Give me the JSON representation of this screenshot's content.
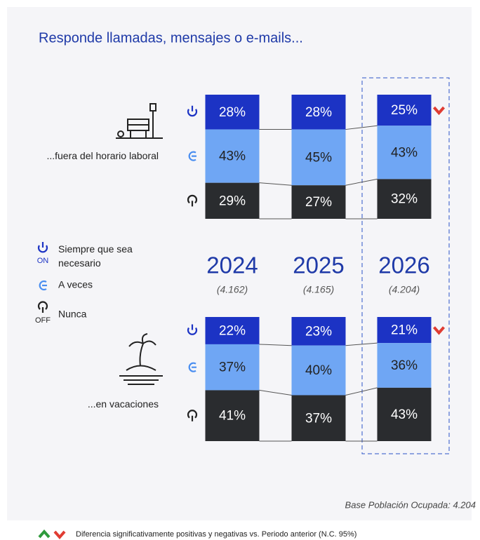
{
  "title": "Responde llamadas, mensajes o e-mails...",
  "base_note": "Base Población Ocupada: 4.204",
  "footnote": "Diferencia significativamente positivas y negativas vs. Periodo anterior (N.C. 95%)",
  "chart_data": [
    {
      "type": "bar",
      "stacked": true,
      "title": "...fuera del horario laboral",
      "categories": [
        "2024",
        "2025",
        "2026"
      ],
      "category_notes": [
        "(4.162)",
        "(4.165)",
        "(4.204)"
      ],
      "series": [
        {
          "name": "Siempre que sea necesario",
          "icon_label": "ON",
          "color": "#1c33c4",
          "values": [
            28,
            28,
            25
          ],
          "value_labels": [
            "28%",
            "28%",
            "25%"
          ],
          "significance": [
            null,
            null,
            "down"
          ]
        },
        {
          "name": "A veces",
          "color": "#6fa6f4",
          "values": [
            43,
            45,
            43
          ],
          "value_labels": [
            "43%",
            "45%",
            "43%"
          ]
        },
        {
          "name": "Nunca",
          "icon_label": "OFF",
          "color": "#2a2c2f",
          "values": [
            29,
            27,
            32
          ],
          "value_labels": [
            "29%",
            "27%",
            "32%"
          ]
        }
      ]
    },
    {
      "type": "bar",
      "stacked": true,
      "title": "...en vacaciones",
      "series": [
        {
          "color": "#1c33c4",
          "values": [
            22,
            23,
            21
          ],
          "value_labels": [
            "22%",
            "23%",
            "21%"
          ],
          "significance": [
            null,
            null,
            "down"
          ]
        },
        {
          "color": "#6fa6f4",
          "values": [
            37,
            40,
            36
          ],
          "value_labels": [
            "37%",
            "40%",
            "36%"
          ]
        },
        {
          "color": "#2a2c2f",
          "values": [
            41,
            37,
            43
          ],
          "value_labels": [
            "41%",
            "37%",
            "43%"
          ]
        }
      ]
    }
  ]
}
